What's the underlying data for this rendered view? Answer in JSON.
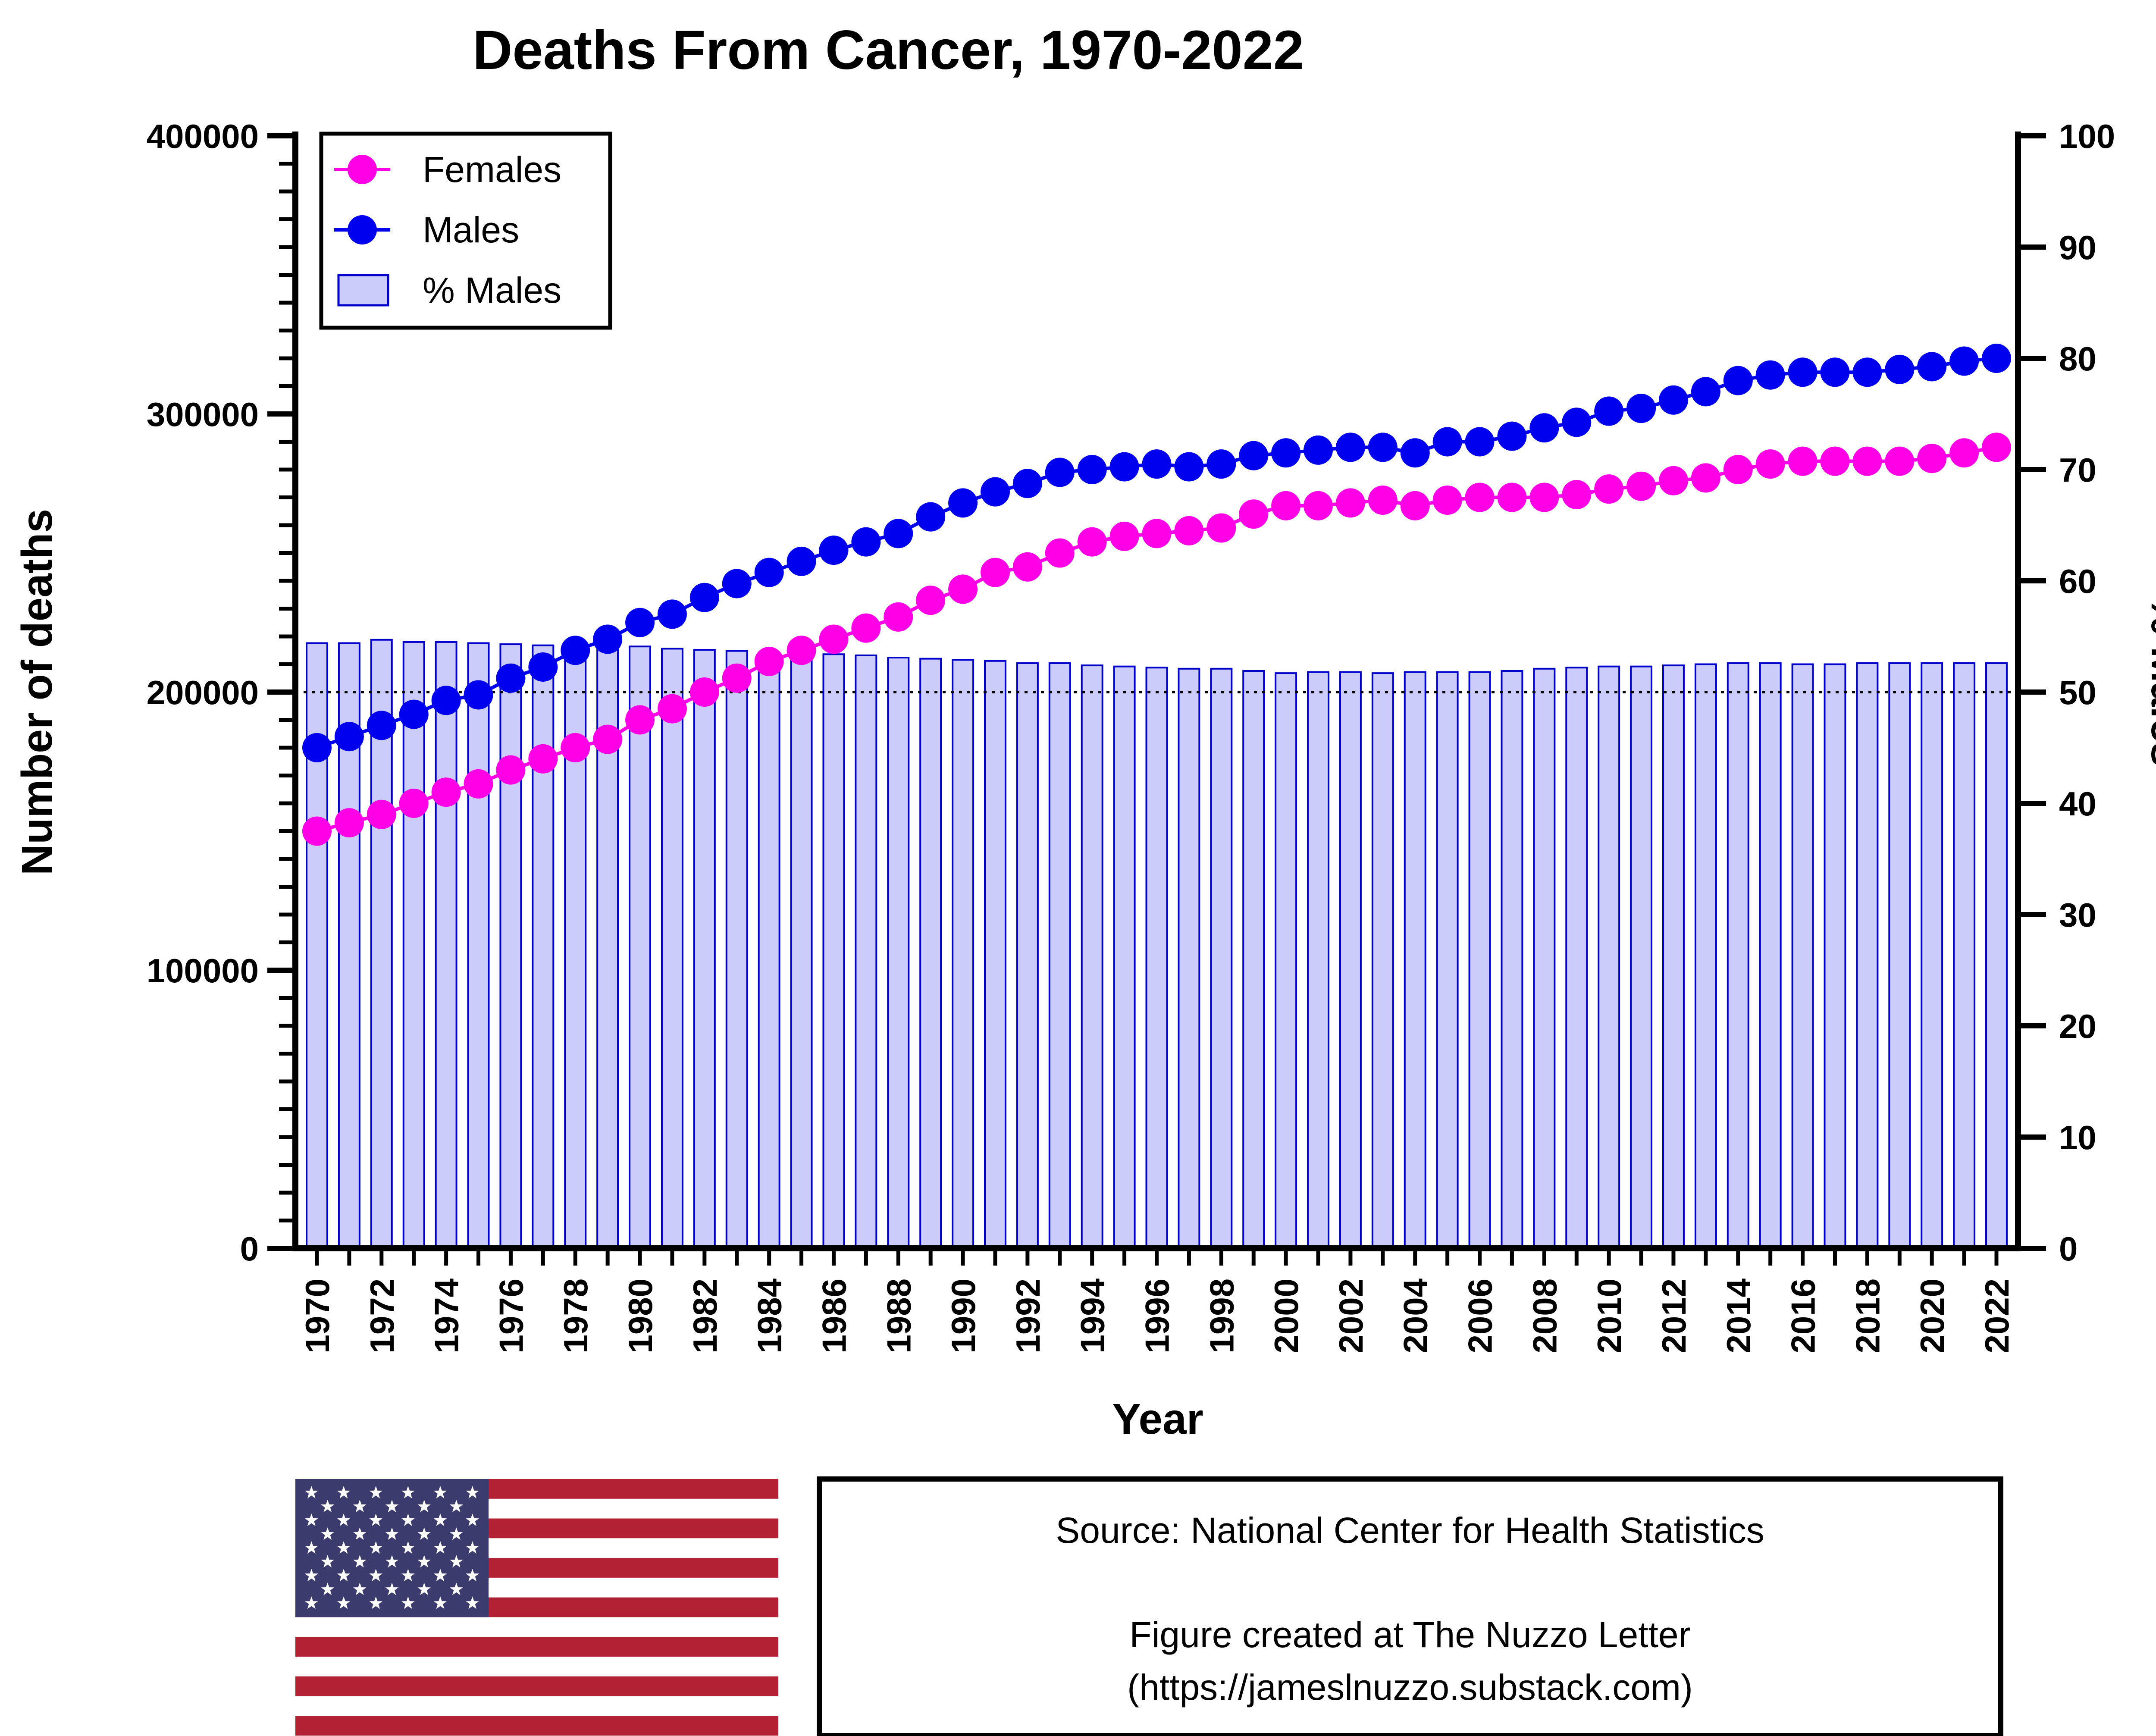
{
  "chart_data": {
    "type": "bar+line",
    "title": "Deaths From Cancer, 1970-2022",
    "xlabel": "Year",
    "ylabel_left": "Number of deaths",
    "ylabel_right": "% Males",
    "ylim_left": [
      0,
      400000
    ],
    "ylim_right": [
      0,
      100
    ],
    "y_ticks_left": [
      "0",
      "100000",
      "200000",
      "300000",
      "400000"
    ],
    "y_ticks_right": [
      "0",
      "10",
      "20",
      "30",
      "40",
      "50",
      "60",
      "70",
      "80",
      "90",
      "100"
    ],
    "reference_line_right": 50,
    "x_tick_labels": [
      "1970",
      "1972",
      "1974",
      "1976",
      "1978",
      "1980",
      "1982",
      "1984",
      "1986",
      "1988",
      "1990",
      "1992",
      "1994",
      "1996",
      "1998",
      "2000",
      "2002",
      "2004",
      "2006",
      "2008",
      "2010",
      "2012",
      "2014",
      "2016",
      "2018",
      "2020",
      "2022"
    ],
    "categories": [
      1970,
      1971,
      1972,
      1973,
      1974,
      1975,
      1976,
      1977,
      1978,
      1979,
      1980,
      1981,
      1982,
      1983,
      1984,
      1985,
      1986,
      1987,
      1988,
      1989,
      1990,
      1991,
      1992,
      1993,
      1994,
      1995,
      1996,
      1997,
      1998,
      1999,
      2000,
      2001,
      2002,
      2003,
      2004,
      2005,
      2006,
      2007,
      2008,
      2009,
      2010,
      2011,
      2012,
      2013,
      2014,
      2015,
      2016,
      2017,
      2018,
      2019,
      2020,
      2021,
      2022
    ],
    "legend": [
      "Females",
      "Males",
      "% Males"
    ],
    "legend_position": "top-left",
    "series": [
      {
        "name": "Females",
        "type": "line",
        "axis": "left",
        "color": "#ff00e6",
        "values": [
          150000,
          153000,
          156000,
          160000,
          164000,
          167000,
          172000,
          176000,
          180000,
          183000,
          190000,
          194000,
          200000,
          205000,
          211000,
          215000,
          219000,
          223000,
          227000,
          233000,
          237000,
          243000,
          245000,
          250000,
          254000,
          256000,
          257000,
          258000,
          259000,
          264000,
          267000,
          267000,
          268000,
          269000,
          267000,
          269000,
          270000,
          270000,
          270000,
          271000,
          273000,
          274000,
          276000,
          277000,
          280000,
          282000,
          283000,
          283000,
          283000,
          283000,
          284000,
          286000,
          288000
        ]
      },
      {
        "name": "Males",
        "type": "line",
        "axis": "left",
        "color": "#0000ee",
        "values": [
          180000,
          184000,
          188000,
          192000,
          197000,
          199000,
          205000,
          209000,
          215000,
          219000,
          225000,
          228000,
          234000,
          239000,
          243000,
          247000,
          251000,
          254000,
          257000,
          263000,
          268000,
          272000,
          275000,
          279000,
          280000,
          281000,
          282000,
          281000,
          282000,
          285000,
          286000,
          287000,
          288000,
          288000,
          286000,
          290000,
          290000,
          292000,
          295000,
          297000,
          301000,
          302000,
          305000,
          308000,
          312000,
          314000,
          315000,
          315000,
          315000,
          316000,
          317000,
          319000,
          320000
        ]
      },
      {
        "name": "% Males",
        "type": "bar",
        "axis": "right",
        "color": "#ccccfb",
        "edge_color": "#0000cc",
        "values": [
          54.4,
          54.4,
          54.7,
          54.5,
          54.5,
          54.4,
          54.3,
          54.2,
          54.0,
          54.0,
          54.1,
          53.9,
          53.8,
          53.7,
          53.5,
          53.4,
          53.4,
          53.3,
          53.1,
          53.0,
          52.9,
          52.8,
          52.6,
          52.6,
          52.4,
          52.3,
          52.2,
          52.1,
          52.1,
          51.9,
          51.7,
          51.8,
          51.8,
          51.7,
          51.8,
          51.8,
          51.8,
          51.9,
          52.1,
          52.2,
          52.3,
          52.3,
          52.4,
          52.5,
          52.6,
          52.6,
          52.5,
          52.5,
          52.6,
          52.6,
          52.6,
          52.6,
          52.6
        ]
      }
    ]
  },
  "source_box": {
    "line1": "Source: National Center for Health Statistics",
    "line2": "Figure created at The Nuzzo Letter",
    "line3": "(https://jameslnuzzo.substack.com)"
  },
  "colors": {
    "flag_red": "#b22234",
    "flag_blue": "#3c3b6e",
    "flag_white": "#ffffff"
  }
}
